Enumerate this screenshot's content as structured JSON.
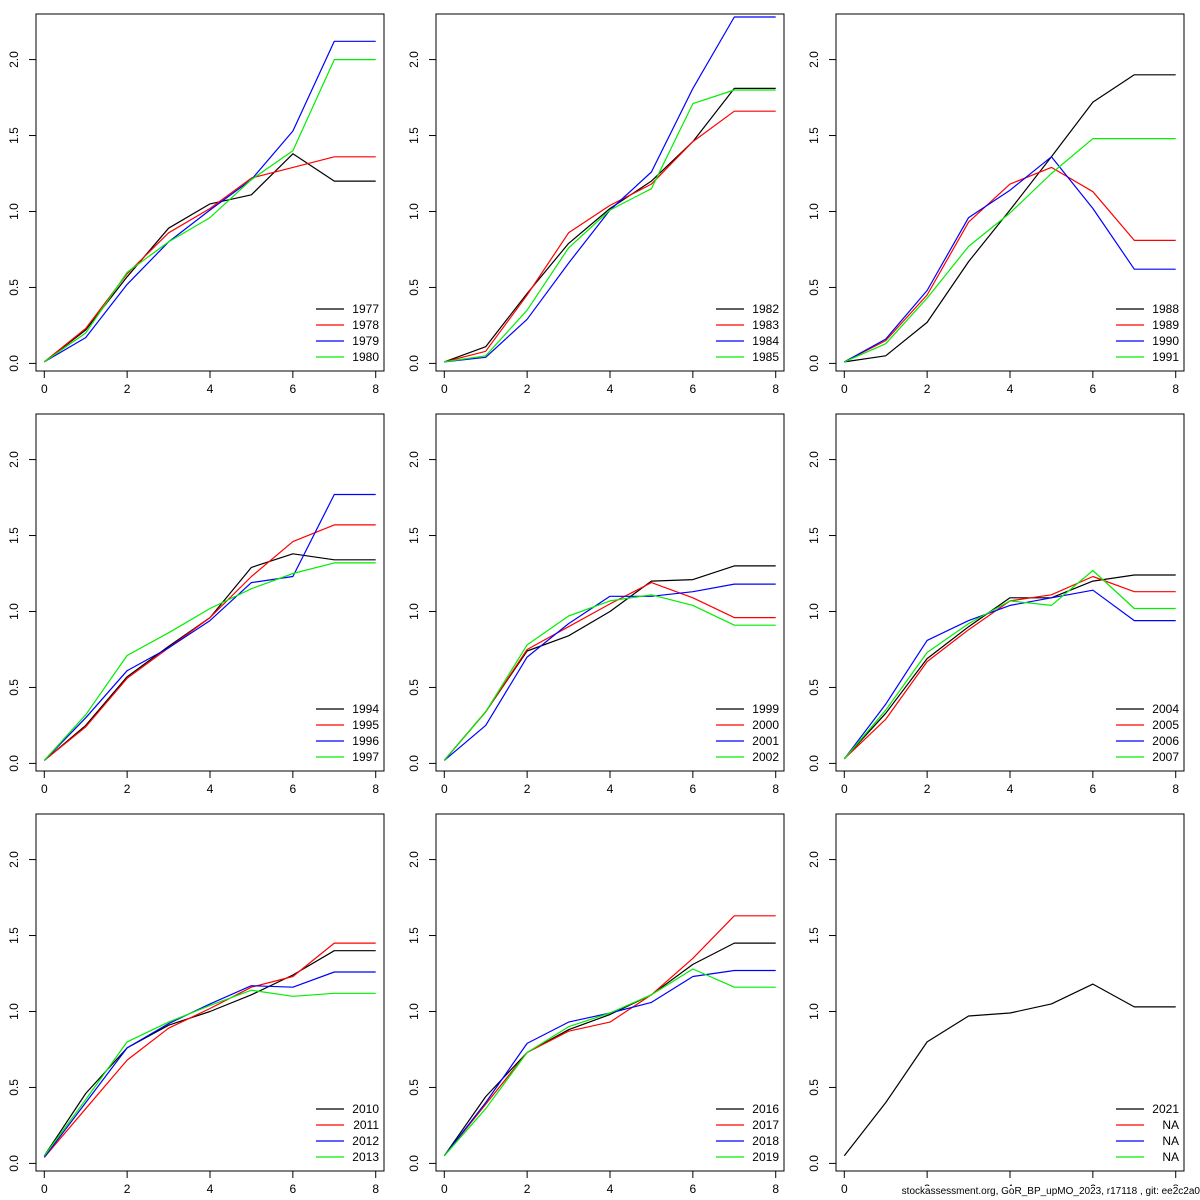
{
  "footer_text": "stockassessment.org, GoR_BP_upMO_2023, r17118 , git: ee2c2a0",
  "chart_data": {
    "type": "line",
    "layout": "3x3 grid",
    "x_ticks": [
      "0",
      "2",
      "4",
      "6",
      "8"
    ],
    "y_ticks": [
      "0.0",
      "0.5",
      "1.0",
      "1.5",
      "2.0"
    ],
    "xlim": [
      -0.2,
      8.2
    ],
    "ylim": [
      -0.05,
      2.3
    ],
    "legend_position": "bottom-right",
    "series_colors": [
      "#000000",
      "#ff0000",
      "#0000ff",
      "#00ee00"
    ],
    "x": [
      0,
      1,
      2,
      3,
      4,
      5,
      6,
      7,
      8
    ],
    "panels": [
      {
        "series": [
          {
            "name": "1977",
            "values": [
              0.01,
              0.22,
              0.57,
              0.89,
              1.05,
              1.11,
              1.38,
              1.2,
              1.2
            ]
          },
          {
            "name": "1978",
            "values": [
              0.01,
              0.23,
              0.59,
              0.86,
              1.02,
              1.22,
              1.29,
              1.36,
              1.36
            ]
          },
          {
            "name": "1979",
            "values": [
              0.01,
              0.17,
              0.52,
              0.8,
              1.01,
              1.21,
              1.53,
              2.12,
              2.12
            ]
          },
          {
            "name": "1980",
            "values": [
              0.01,
              0.2,
              0.6,
              0.8,
              0.96,
              1.21,
              1.4,
              2.0,
              2.0
            ]
          }
        ]
      },
      {
        "series": [
          {
            "name": "1982",
            "values": [
              0.01,
              0.11,
              0.46,
              0.79,
              1.02,
              1.2,
              1.46,
              1.81,
              1.81
            ]
          },
          {
            "name": "1983",
            "values": [
              0.01,
              0.08,
              0.45,
              0.86,
              1.04,
              1.18,
              1.46,
              1.66,
              1.66
            ]
          },
          {
            "name": "1984",
            "values": [
              0.01,
              0.04,
              0.29,
              0.66,
              1.01,
              1.26,
              1.81,
              2.28,
              2.28
            ]
          },
          {
            "name": "1985",
            "values": [
              0.01,
              0.05,
              0.35,
              0.76,
              1.01,
              1.15,
              1.71,
              1.8,
              1.8
            ]
          }
        ]
      },
      {
        "series": [
          {
            "name": "1988",
            "values": [
              0.01,
              0.05,
              0.27,
              0.67,
              1.01,
              1.36,
              1.72,
              1.9,
              1.9
            ]
          },
          {
            "name": "1989",
            "values": [
              0.01,
              0.15,
              0.45,
              0.93,
              1.18,
              1.29,
              1.13,
              0.81,
              0.81
            ]
          },
          {
            "name": "1990",
            "values": [
              0.01,
              0.16,
              0.48,
              0.96,
              1.14,
              1.36,
              1.02,
              0.62,
              0.62
            ]
          },
          {
            "name": "1991",
            "values": [
              0.01,
              0.13,
              0.43,
              0.77,
              0.99,
              1.25,
              1.48,
              1.48,
              1.48
            ]
          }
        ]
      },
      {
        "series": [
          {
            "name": "1994",
            "values": [
              0.02,
              0.25,
              0.57,
              0.77,
              0.96,
              1.29,
              1.38,
              1.34,
              1.34
            ]
          },
          {
            "name": "1995",
            "values": [
              0.02,
              0.24,
              0.56,
              0.76,
              0.96,
              1.23,
              1.46,
              1.57,
              1.57
            ]
          },
          {
            "name": "1996",
            "values": [
              0.02,
              0.3,
              0.61,
              0.76,
              0.94,
              1.19,
              1.23,
              1.77,
              1.77
            ]
          },
          {
            "name": "1997",
            "values": [
              0.02,
              0.32,
              0.71,
              0.86,
              1.02,
              1.15,
              1.25,
              1.32,
              1.32
            ]
          }
        ]
      },
      {
        "series": [
          {
            "name": "1999",
            "values": [
              0.02,
              0.34,
              0.74,
              0.84,
              1.0,
              1.2,
              1.21,
              1.3,
              1.3
            ]
          },
          {
            "name": "2000",
            "values": [
              0.02,
              0.34,
              0.75,
              0.9,
              1.05,
              1.19,
              1.09,
              0.96,
              0.96
            ]
          },
          {
            "name": "2001",
            "values": [
              0.02,
              0.25,
              0.7,
              0.92,
              1.1,
              1.1,
              1.13,
              1.18,
              1.18
            ]
          },
          {
            "name": "2002",
            "values": [
              0.02,
              0.34,
              0.78,
              0.97,
              1.07,
              1.11,
              1.04,
              0.91,
              0.91
            ]
          }
        ]
      },
      {
        "series": [
          {
            "name": "2004",
            "values": [
              0.03,
              0.33,
              0.69,
              0.9,
              1.09,
              1.09,
              1.2,
              1.24,
              1.24
            ]
          },
          {
            "name": "2005",
            "values": [
              0.03,
              0.29,
              0.67,
              0.88,
              1.07,
              1.11,
              1.23,
              1.13,
              1.13
            ]
          },
          {
            "name": "2006",
            "values": [
              0.03,
              0.39,
              0.81,
              0.94,
              1.04,
              1.09,
              1.14,
              0.94,
              0.94
            ]
          },
          {
            "name": "2007",
            "values": [
              0.03,
              0.35,
              0.73,
              0.92,
              1.07,
              1.04,
              1.27,
              1.02,
              1.02
            ]
          }
        ]
      },
      {
        "series": [
          {
            "name": "2010",
            "values": [
              0.05,
              0.46,
              0.76,
              0.91,
              1.0,
              1.11,
              1.24,
              1.4,
              1.4
            ]
          },
          {
            "name": "2011",
            "values": [
              0.04,
              0.36,
              0.68,
              0.89,
              1.02,
              1.16,
              1.23,
              1.45,
              1.45
            ]
          },
          {
            "name": "2012",
            "values": [
              0.04,
              0.4,
              0.76,
              0.92,
              1.05,
              1.17,
              1.16,
              1.26,
              1.26
            ]
          },
          {
            "name": "2013",
            "values": [
              0.05,
              0.42,
              0.8,
              0.93,
              1.04,
              1.14,
              1.1,
              1.12,
              1.12
            ]
          }
        ]
      },
      {
        "series": [
          {
            "name": "2016",
            "values": [
              0.05,
              0.44,
              0.73,
              0.88,
              0.98,
              1.11,
              1.31,
              1.45,
              1.45
            ]
          },
          {
            "name": "2017",
            "values": [
              0.05,
              0.39,
              0.73,
              0.87,
              0.93,
              1.11,
              1.35,
              1.63,
              1.63
            ]
          },
          {
            "name": "2018",
            "values": [
              0.05,
              0.4,
              0.79,
              0.93,
              0.99,
              1.06,
              1.23,
              1.27,
              1.27
            ]
          },
          {
            "name": "2019",
            "values": [
              0.05,
              0.36,
              0.73,
              0.9,
              0.99,
              1.11,
              1.28,
              1.16,
              1.16
            ]
          }
        ]
      },
      {
        "series": [
          {
            "name": "2021",
            "values": [
              0.05,
              0.4,
              0.8,
              0.97,
              0.99,
              1.05,
              1.18,
              1.03,
              1.03
            ]
          },
          {
            "name": "NA",
            "values": []
          },
          {
            "name": "NA",
            "values": []
          },
          {
            "name": "NA",
            "values": []
          }
        ]
      }
    ]
  }
}
